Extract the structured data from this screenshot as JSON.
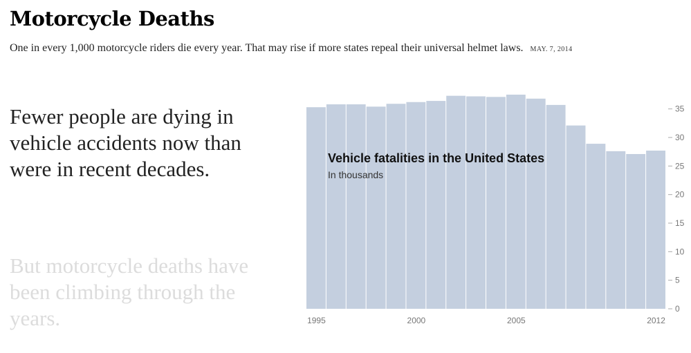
{
  "header": {
    "title": "Motorcycle Deaths",
    "dek": "One in every 1,000 motorcycle riders die every year. That may rise if more states repeal their universal helmet laws.",
    "date": "MAY. 7, 2014"
  },
  "steps": [
    {
      "text": "Fewer people are dying in vehicle accidents now than were in recent decades."
    },
    {
      "text": "But motorcycle deaths have been climbing through the years."
    }
  ],
  "colors": {
    "bar": "#c4cfdf",
    "axis_text": "#777777",
    "step_active": "#222222",
    "step_inactive": "#dcdcdc"
  },
  "chart_data": {
    "type": "bar",
    "title": "Vehicle fatalities in the United States",
    "subtitle": "In thousands",
    "xlabel": "",
    "ylabel": "",
    "categories": [
      "1995",
      "1996",
      "1997",
      "1998",
      "1999",
      "2000",
      "2001",
      "2002",
      "2003",
      "2004",
      "2005",
      "2006",
      "2007",
      "2008",
      "2009",
      "2010",
      "2011",
      "2012"
    ],
    "values": [
      35.3,
      35.8,
      35.8,
      35.4,
      35.9,
      36.2,
      36.4,
      37.3,
      37.2,
      37.1,
      37.5,
      36.8,
      35.7,
      32.1,
      28.9,
      27.6,
      27.1,
      27.7
    ],
    "x_tick_labels": [
      "1995",
      "2000",
      "2005",
      "2012"
    ],
    "y_ticks": [
      "35",
      "30",
      "25",
      "20",
      "15",
      "10",
      "5",
      "0"
    ],
    "ylim": [
      0,
      38
    ],
    "y_axis_position": "right",
    "grid": false,
    "legend": "none"
  }
}
